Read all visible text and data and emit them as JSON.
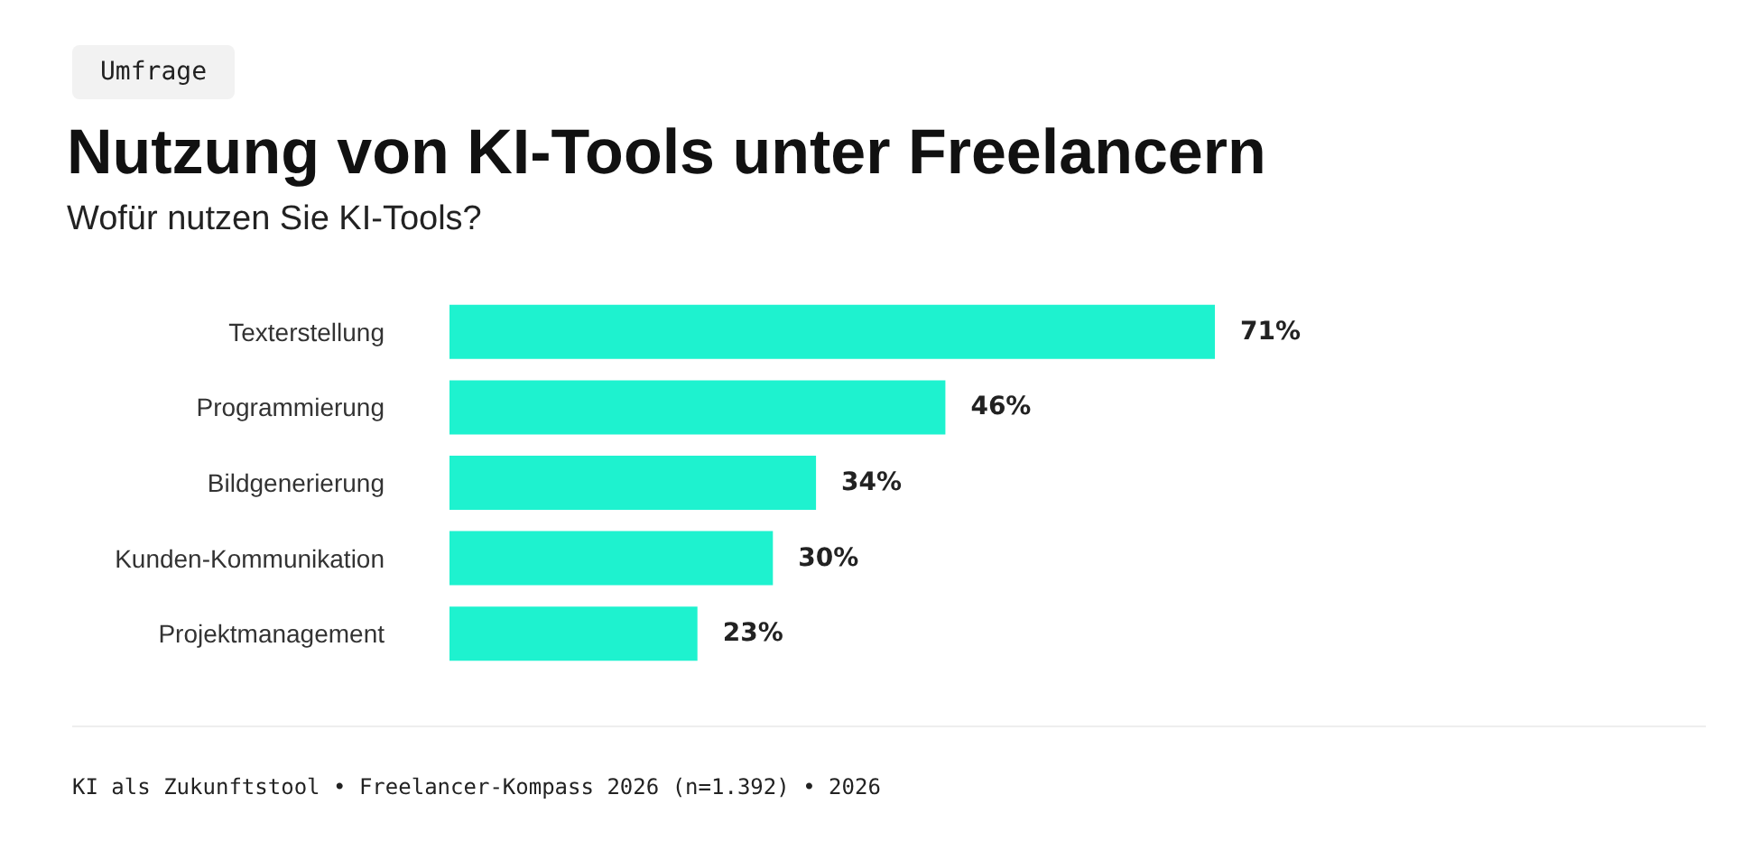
{
  "chart_data": {
    "type": "bar",
    "orientation": "horizontal",
    "title": "Nutzung von KI-Tools unter Freelancern",
    "subtitle": "Wofür nutzen Sie KI-Tools?",
    "categories": [
      "Texterstellung",
      "Programmierung",
      "Bildgenerierung",
      "Kunden-Kommunikation",
      "Projektmanagement"
    ],
    "values": [
      71,
      46,
      34,
      30,
      23
    ],
    "value_labels": [
      "71%",
      "46%",
      "34%",
      "30%",
      "23%"
    ],
    "color": "#1ef2cf",
    "annotations": [
      "Umfrage",
      "KI als Zukunftstool • Freelancer-Kompass 2026 (n=1.392) • 2026"
    ]
  }
}
